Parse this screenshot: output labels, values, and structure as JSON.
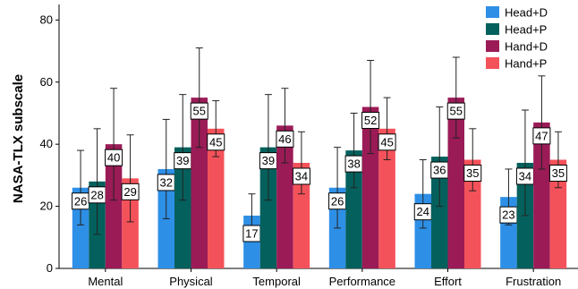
{
  "chart_data": {
    "type": "bar",
    "title": "",
    "xlabel": "",
    "ylabel": "NASA-TLX subscale",
    "ylim": [
      0,
      85
    ],
    "yticks": [
      0,
      20,
      40,
      60,
      80
    ],
    "grid": false,
    "legend_position": "top-right",
    "categories": [
      "Mental",
      "Physical",
      "Temporal",
      "Performance",
      "Effort",
      "Frustration"
    ],
    "series": [
      {
        "name": "Head+D",
        "color": "#2e8fe6",
        "values": [
          26,
          32,
          17,
          26,
          24,
          23
        ],
        "error_upper": [
          38,
          48,
          24,
          39,
          35,
          32
        ]
      },
      {
        "name": "Head+P",
        "color": "#04605c",
        "values": [
          28,
          39,
          39,
          38,
          36,
          34
        ],
        "error_upper": [
          45,
          56,
          56,
          50,
          52,
          51
        ]
      },
      {
        "name": "Hand+D",
        "color": "#9a1b56",
        "values": [
          40,
          55,
          46,
          52,
          55,
          47
        ],
        "error_upper": [
          58,
          71,
          58,
          67,
          68,
          62
        ]
      },
      {
        "name": "Hand+P",
        "color": "#f4525a",
        "values": [
          29,
          45,
          34,
          45,
          35,
          35
        ],
        "error_upper": [
          43,
          54,
          44,
          55,
          45,
          44
        ]
      }
    ]
  }
}
